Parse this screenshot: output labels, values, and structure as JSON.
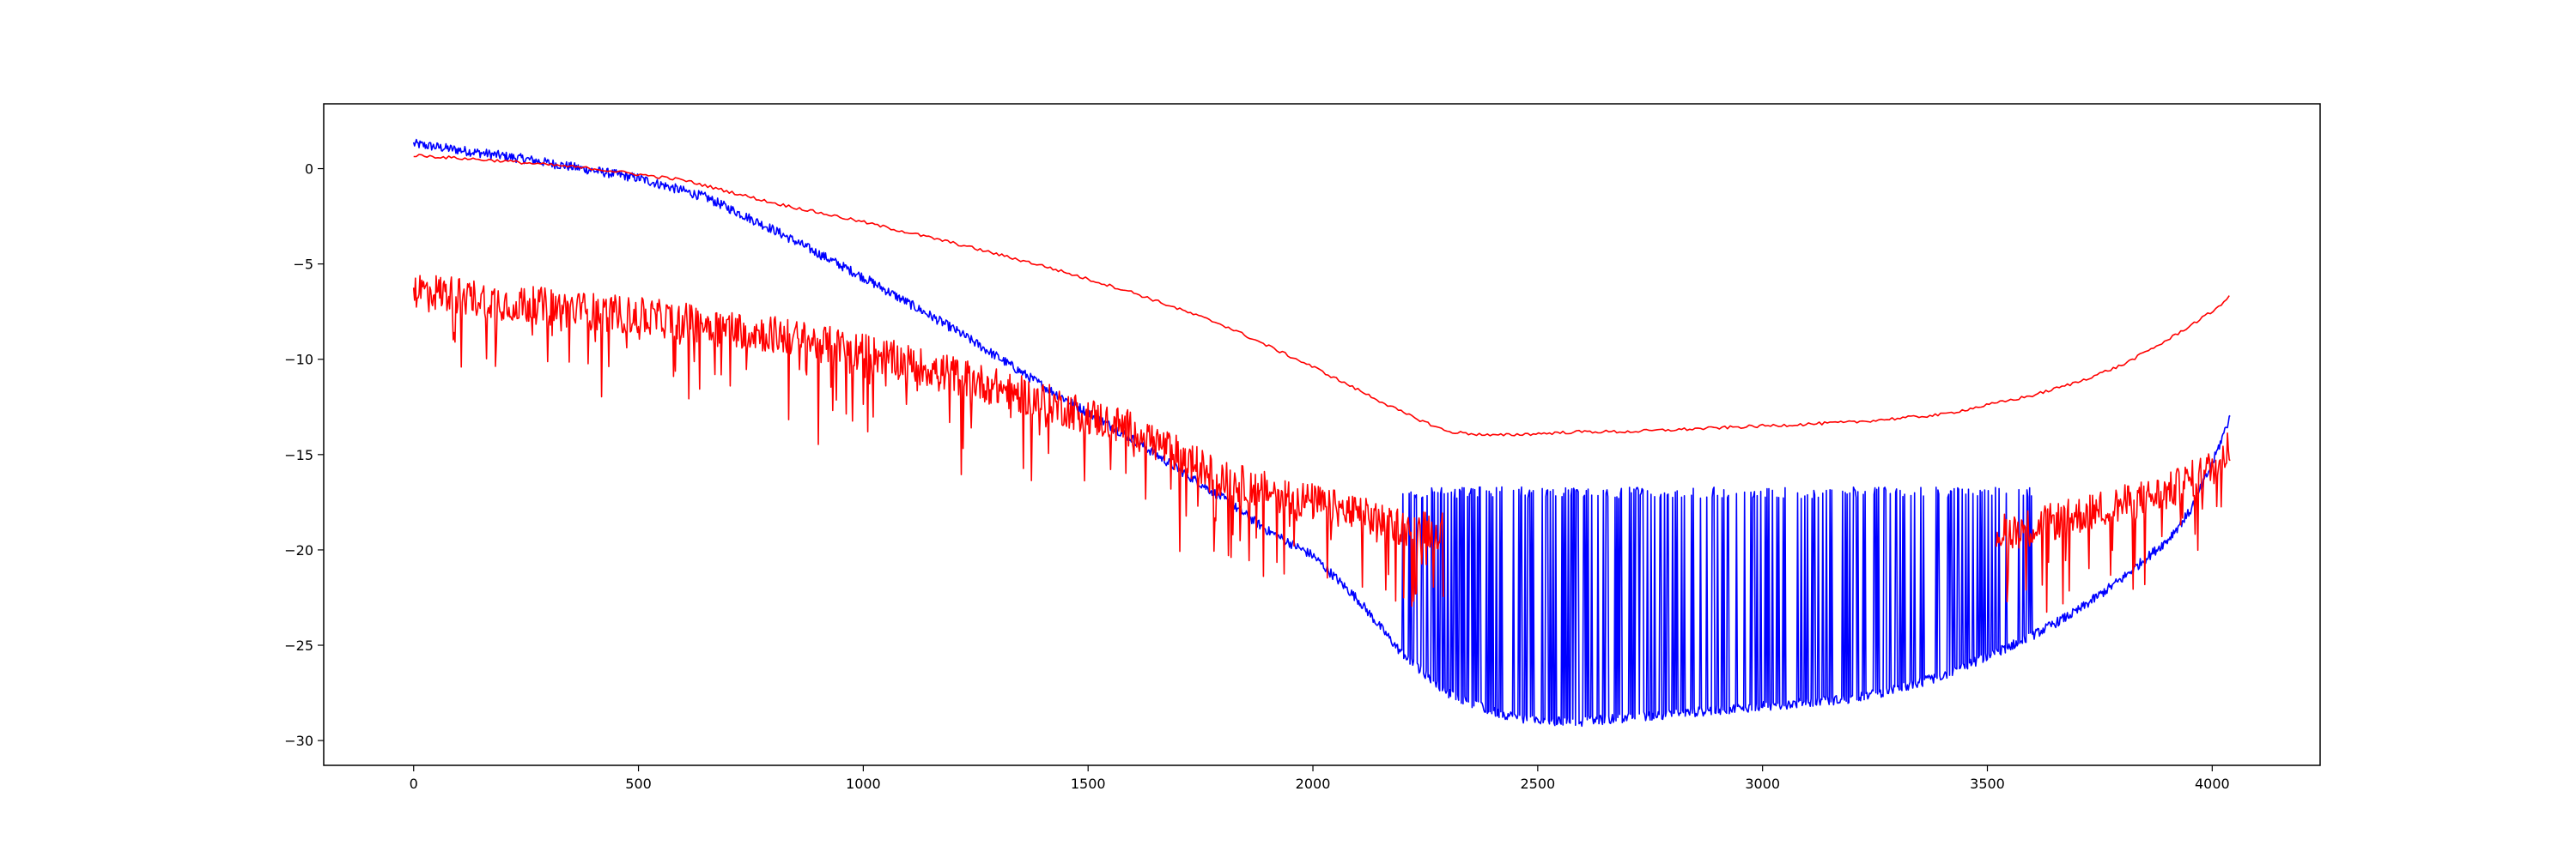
{
  "chart_data": {
    "type": "line",
    "title": "",
    "xlabel": "",
    "ylabel": "",
    "xlim": [
      -200,
      4240
    ],
    "ylim": [
      -31.3,
      3.4
    ],
    "x_ticks": [
      0,
      500,
      1000,
      1500,
      2000,
      2500,
      3000,
      3500,
      4000
    ],
    "y_ticks": [
      0,
      -5,
      -10,
      -15,
      -20,
      -25,
      -30
    ],
    "x_tick_labels": [
      "0",
      "500",
      "1000",
      "1500",
      "2000",
      "2500",
      "3000",
      "3500",
      "4000"
    ],
    "y_tick_labels": [
      "0",
      "−5",
      "−10",
      "−15",
      "−20",
      "−25",
      "−30"
    ],
    "grid": false,
    "legend": "none",
    "series": [
      {
        "color": "#0000ff",
        "style": "noisy line with frequent vertical spikes up to about -17 between x 2200 and 3600",
        "x": [
          0,
          250,
          500,
          650,
          800,
          1000,
          1200,
          1400,
          1600,
          1800,
          1900,
          2000,
          2100,
          2200,
          2300,
          2400,
          2500,
          2600,
          2700,
          2800,
          3000,
          3200,
          3300,
          3400,
          3500,
          3600,
          3700,
          3800,
          3900,
          3950,
          4000,
          4040
        ],
        "y": [
          1.3,
          0.5,
          -0.5,
          -1.5,
          -3.2,
          -5.7,
          -8.4,
          -11.4,
          -14.2,
          -17.3,
          -19.0,
          -20.3,
          -22.6,
          -25.5,
          -27.5,
          -28.5,
          -29.0,
          -29.0,
          -28.8,
          -28.6,
          -28.2,
          -27.8,
          -27.3,
          -26.6,
          -25.6,
          -24.5,
          -23.2,
          -21.5,
          -19.5,
          -18.0,
          -15.5,
          -13.0
        ],
        "spike_top": -17.0,
        "spike_range": [
          2200,
          3600
        ],
        "noise": 0.25
      },
      {
        "color": "#ff0000",
        "style": "smooth line",
        "x": [
          0,
          200,
          400,
          600,
          800,
          1000,
          1200,
          1400,
          1600,
          1800,
          2000,
          2100,
          2200,
          2300,
          2400,
          2500,
          2600,
          2700,
          2800,
          3000,
          3200,
          3400,
          3600,
          3700,
          3800,
          3900,
          4000,
          4040
        ],
        "y": [
          0.7,
          0.4,
          0.0,
          -0.6,
          -1.8,
          -2.8,
          -3.9,
          -5.1,
          -6.5,
          -8.2,
          -10.4,
          -11.6,
          -12.8,
          -13.8,
          -14.0,
          -13.9,
          -13.8,
          -13.8,
          -13.7,
          -13.5,
          -13.3,
          -12.9,
          -11.9,
          -11.2,
          -10.3,
          -9.0,
          -7.5,
          -6.7
        ],
        "noise": 0.08
      },
      {
        "color": "#ff0000",
        "style": "very noisy line with downward spikes",
        "x": [
          0,
          200,
          400,
          600,
          800,
          1000,
          1200,
          1400,
          1600,
          1800,
          2000,
          2200,
          2300,
          2400,
          2500,
          2600,
          2700,
          2800,
          2900,
          3000,
          3100,
          3200,
          3300,
          3400,
          3500,
          3600,
          3700,
          3800,
          3900,
          4000,
          4040
        ],
        "y": [
          -6.3,
          -7.0,
          -7.5,
          -8.0,
          -8.7,
          -9.6,
          -10.8,
          -12.2,
          -13.7,
          -16.3,
          -17.5,
          -18.8,
          -19.0,
          -19.1,
          -19.2,
          -19.3,
          -19.4,
          -19.4,
          -19.5,
          -19.5,
          -19.5,
          -19.4,
          -19.4,
          -19.3,
          -19.2,
          -18.8,
          -18.2,
          -17.6,
          -17.0,
          -15.7,
          -14.5
        ],
        "noise": 1.0,
        "dip": 4.5,
        "visible_ranges": [
          [
            0,
            2290
          ],
          [
            3520,
            4040
          ]
        ]
      }
    ]
  }
}
